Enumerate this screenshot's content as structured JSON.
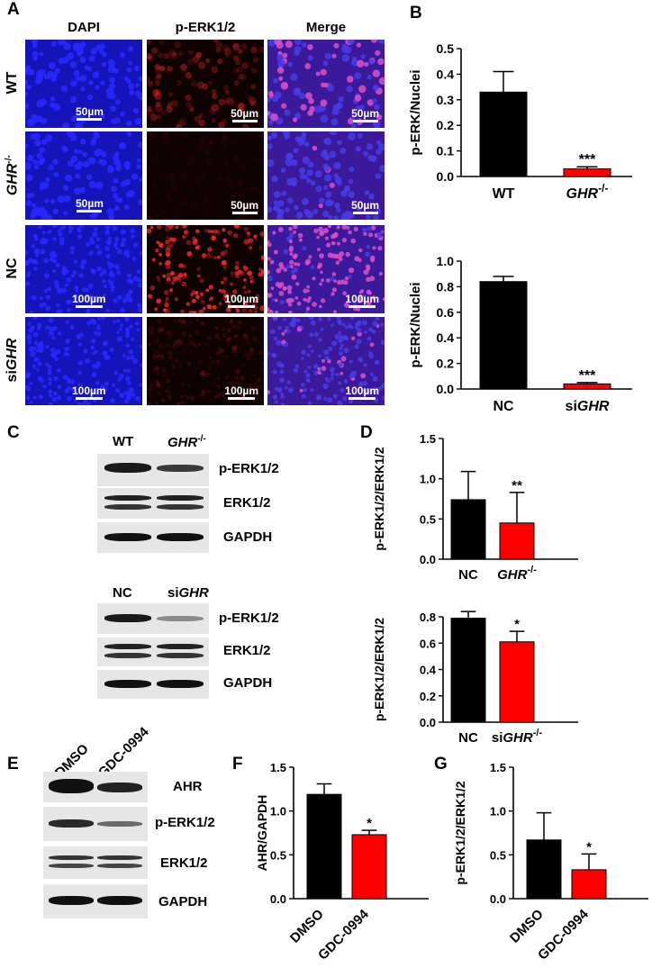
{
  "panels": {
    "A": "A",
    "B": "B",
    "C": "C",
    "D": "D",
    "E": "E",
    "F": "F",
    "G": "G"
  },
  "panel_a": {
    "columns": [
      "DAPI",
      "p-ERK1/2",
      "Merge"
    ],
    "rows": [
      {
        "label": "WT",
        "scale": "50µm",
        "signal": 0.35
      },
      {
        "label": "GHR",
        "label_sup": "-/-",
        "scale": "50µm",
        "signal": 0.05
      },
      {
        "label": "NC",
        "scale": "100µm",
        "signal": 0.85
      },
      {
        "label_prefix": "si",
        "label": "GHR",
        "scale": "100µm",
        "signal": 0.15
      }
    ]
  },
  "panel_c": {
    "blot1": {
      "lanes": [
        "WT",
        "GHR"
      ],
      "lane2_sup": "-/-",
      "rows": [
        "p-ERK1/2",
        "ERK1/2",
        "GAPDH"
      ]
    },
    "blot2": {
      "lanes": [
        "NC",
        "si"
      ],
      "lane2_italic": "GHR",
      "rows": [
        "p-ERK1/2",
        "ERK1/2",
        "GAPDH"
      ]
    }
  },
  "panel_e": {
    "lanes": [
      "DMSO",
      "GDC-0994"
    ],
    "rows": [
      "AHR",
      "p-ERK1/2",
      "ERK1/2",
      "GAPDH"
    ]
  },
  "colors": {
    "control": "#000000",
    "treated": "#ff0000"
  },
  "chart_data": [
    {
      "id": "B1",
      "type": "bar",
      "categories": [
        "WT",
        "GHR"
      ],
      "category_sup": [
        "",
        "-/-"
      ],
      "category_italic": [
        false,
        true
      ],
      "values": [
        0.33,
        0.03
      ],
      "errors": [
        0.08,
        0.008
      ],
      "significance": [
        "",
        "***"
      ],
      "xlabel": "",
      "ylabel": "p-ERK/Nuclei",
      "ylim": [
        0,
        0.5
      ],
      "yticks": [
        "0.0",
        "0.1",
        "0.2",
        "0.3",
        "0.4",
        "0.5"
      ]
    },
    {
      "id": "B2",
      "type": "bar",
      "categories": [
        "NC",
        "siGHR"
      ],
      "category_sup": [
        "",
        ""
      ],
      "category_italic": [
        false,
        false
      ],
      "values": [
        0.84,
        0.04
      ],
      "errors": [
        0.04,
        0.01
      ],
      "significance": [
        "",
        "***"
      ],
      "xlabel": "",
      "ylabel": "p-ERK/Nuclei",
      "ylim": [
        0,
        1.0
      ],
      "yticks": [
        "0.0",
        "0.2",
        "0.4",
        "0.6",
        "0.8",
        "1.0"
      ]
    },
    {
      "id": "D1",
      "type": "bar",
      "categories": [
        "NC",
        "GHR"
      ],
      "category_sup": [
        "",
        "-/-"
      ],
      "category_italic": [
        false,
        true
      ],
      "values": [
        0.74,
        0.45
      ],
      "errors": [
        0.35,
        0.38
      ],
      "significance": [
        "",
        "**"
      ],
      "xlabel": "",
      "ylabel": "p-ERK1/2/ERK1/2",
      "ylim": [
        0,
        1.5
      ],
      "yticks": [
        "0.0",
        "0.5",
        "1.0",
        "1.5"
      ]
    },
    {
      "id": "D2",
      "type": "bar",
      "categories": [
        "NC",
        "siGHR"
      ],
      "category_sup": [
        "",
        "-/-"
      ],
      "category_italic": [
        false,
        true
      ],
      "values": [
        0.79,
        0.61
      ],
      "errors": [
        0.05,
        0.08
      ],
      "significance": [
        "",
        "*"
      ],
      "xlabel": "",
      "ylabel": "p-ERK1/2/ERK1/2",
      "ylim": [
        0,
        0.8
      ],
      "yticks": [
        "0.0",
        "0.2",
        "0.4",
        "0.6",
        "0.8"
      ]
    },
    {
      "id": "F",
      "type": "bar",
      "categories": [
        "DMSO",
        "GDC-0994"
      ],
      "category_sup": [
        "",
        ""
      ],
      "category_italic": [
        false,
        false
      ],
      "values": [
        1.19,
        0.73
      ],
      "errors": [
        0.12,
        0.05
      ],
      "significance": [
        "",
        "*"
      ],
      "xlabel": "",
      "ylabel": "AHR/GAPDH",
      "ylim": [
        0,
        1.5
      ],
      "yticks": [
        "0.0",
        "0.5",
        "1.0",
        "1.5"
      ]
    },
    {
      "id": "G",
      "type": "bar",
      "categories": [
        "DMSO",
        "GDC-0994"
      ],
      "category_sup": [
        "",
        ""
      ],
      "category_italic": [
        false,
        false
      ],
      "values": [
        0.67,
        0.33
      ],
      "errors": [
        0.31,
        0.18
      ],
      "significance": [
        "",
        "*"
      ],
      "xlabel": "",
      "ylabel": "p-ERK1/2/ERK1/2",
      "ylim": [
        0,
        1.5
      ],
      "yticks": [
        "0.0",
        "0.5",
        "1.0",
        "1.5"
      ]
    }
  ]
}
